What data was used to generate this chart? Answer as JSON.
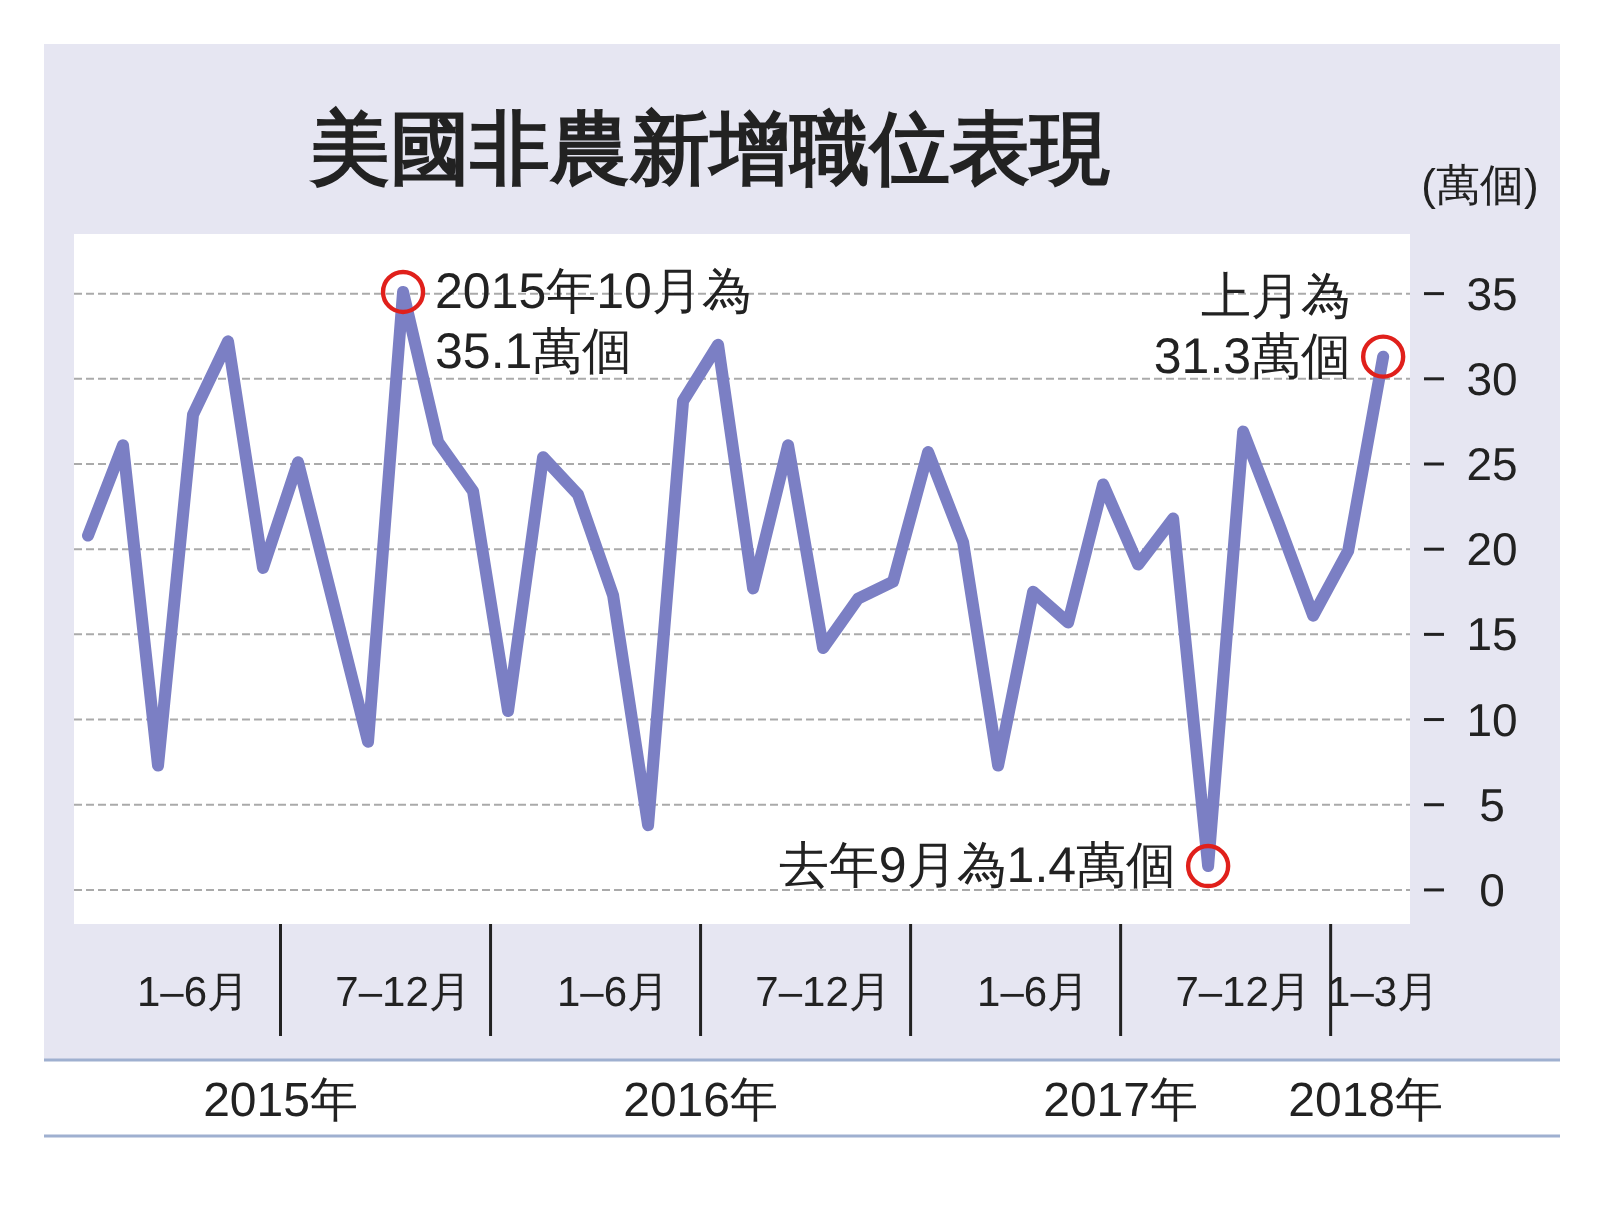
{
  "chart_data": {
    "type": "line",
    "title": "美國非農新增職位表現",
    "ylabel": "(萬個)",
    "x": [
      "2015-01",
      "2015-02",
      "2015-03",
      "2015-04",
      "2015-05",
      "2015-06",
      "2015-07",
      "2015-08",
      "2015-09",
      "2015-10",
      "2015-11",
      "2015-12",
      "2016-01",
      "2016-02",
      "2016-03",
      "2016-04",
      "2016-05",
      "2016-06",
      "2016-07",
      "2016-08",
      "2016-09",
      "2016-10",
      "2016-11",
      "2016-12",
      "2017-01",
      "2017-02",
      "2017-03",
      "2017-04",
      "2017-05",
      "2017-06",
      "2017-07",
      "2017-08",
      "2017-09",
      "2017-10",
      "2017-11",
      "2017-12",
      "2018-01",
      "2018-02"
    ],
    "series": [
      {
        "color": "#7b7fc4",
        "values": [
          20.8,
          26.1,
          7.3,
          27.9,
          32.2,
          18.9,
          25.1,
          16.9,
          8.7,
          35.1,
          26.3,
          23.4,
          10.5,
          25.4,
          23.2,
          17.3,
          3.8,
          28.7,
          32.0,
          17.7,
          26.1,
          14.2,
          17.1,
          18.1,
          25.7,
          20.4,
          7.3,
          17.5,
          15.7,
          23.8,
          19.1,
          21.8,
          1.4,
          26.9,
          21.6,
          16.1,
          19.9,
          31.3
        ]
      }
    ],
    "xlim": [
      "2014-12-19",
      "2018-02-24"
    ],
    "xticks": [
      {
        "value": "2015-04-01",
        "label": "1–6月"
      },
      {
        "value": "2015-06-16",
        "label": null
      },
      {
        "value": "2015-10-01",
        "label": "7–12月"
      },
      {
        "value": "2015-12-16",
        "label": null
      },
      {
        "value": "2016-04-01",
        "label": "1–6月"
      },
      {
        "value": "2016-06-16",
        "label": null
      },
      {
        "value": "2016-10-01",
        "label": "7–12月"
      },
      {
        "value": "2016-12-16",
        "label": null
      },
      {
        "value": "2017-04-01",
        "label": "1–6月"
      },
      {
        "value": "2017-06-16",
        "label": null
      },
      {
        "value": "2017-10-01",
        "label": "7–12月"
      },
      {
        "value": "2017-12-16",
        "label": null
      },
      {
        "value": "2018-01-31",
        "label": "1–3月"
      }
    ],
    "ylim": [
      -2,
      38.5
    ],
    "yticks": [
      0,
      5,
      10,
      15,
      20,
      25,
      30,
      35
    ],
    "grid": "y",
    "line_style": "solid",
    "marker": "none",
    "annotations": [
      {
        "text": "2015年10月為\n35.1萬個",
        "x": "2015-10",
        "y": 35.1
      },
      {
        "text": "去年9月為1.4萬個",
        "x": "2017-09",
        "y": 1.4
      },
      {
        "text": "上月為\n31.3萬個",
        "x": "2018-02",
        "y": 31.3
      },
      "2015年",
      "2016年",
      "2017年",
      "2018年"
    ]
  }
}
